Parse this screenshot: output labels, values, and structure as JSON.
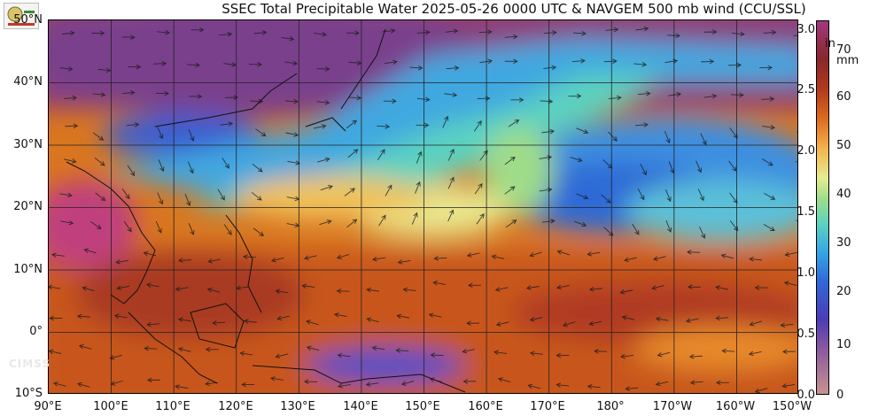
{
  "title": "SSEC Total Precipitable Water  2025-05-26 0000 UTC & NAVGEM 500 mb wind (CCU/SSL)",
  "lat_labels": [
    "50°N",
    "40°N",
    "30°N",
    "20°N",
    "10°N",
    "0°",
    "10°S"
  ],
  "lon_labels": [
    "90°E",
    "100°E",
    "110°E",
    "120°E",
    "130°E",
    "140°E",
    "150°E",
    "160°E",
    "170°E",
    "180°",
    "170°W",
    "160°W",
    "150°W"
  ],
  "colorbar": {
    "inch_unit": "in",
    "mm_unit": "mm",
    "inch_ticks": [
      "3.0",
      "2.5",
      "2.0",
      "1.5",
      "1.0",
      "0.5",
      "0.0"
    ],
    "mm_ticks": [
      "70",
      "60",
      "50",
      "40",
      "30",
      "20",
      "10",
      "0"
    ]
  },
  "watermark": "CIMSS",
  "map": {
    "extent_lon": [
      90,
      210
    ],
    "extent_lat": [
      -10,
      50
    ]
  }
}
